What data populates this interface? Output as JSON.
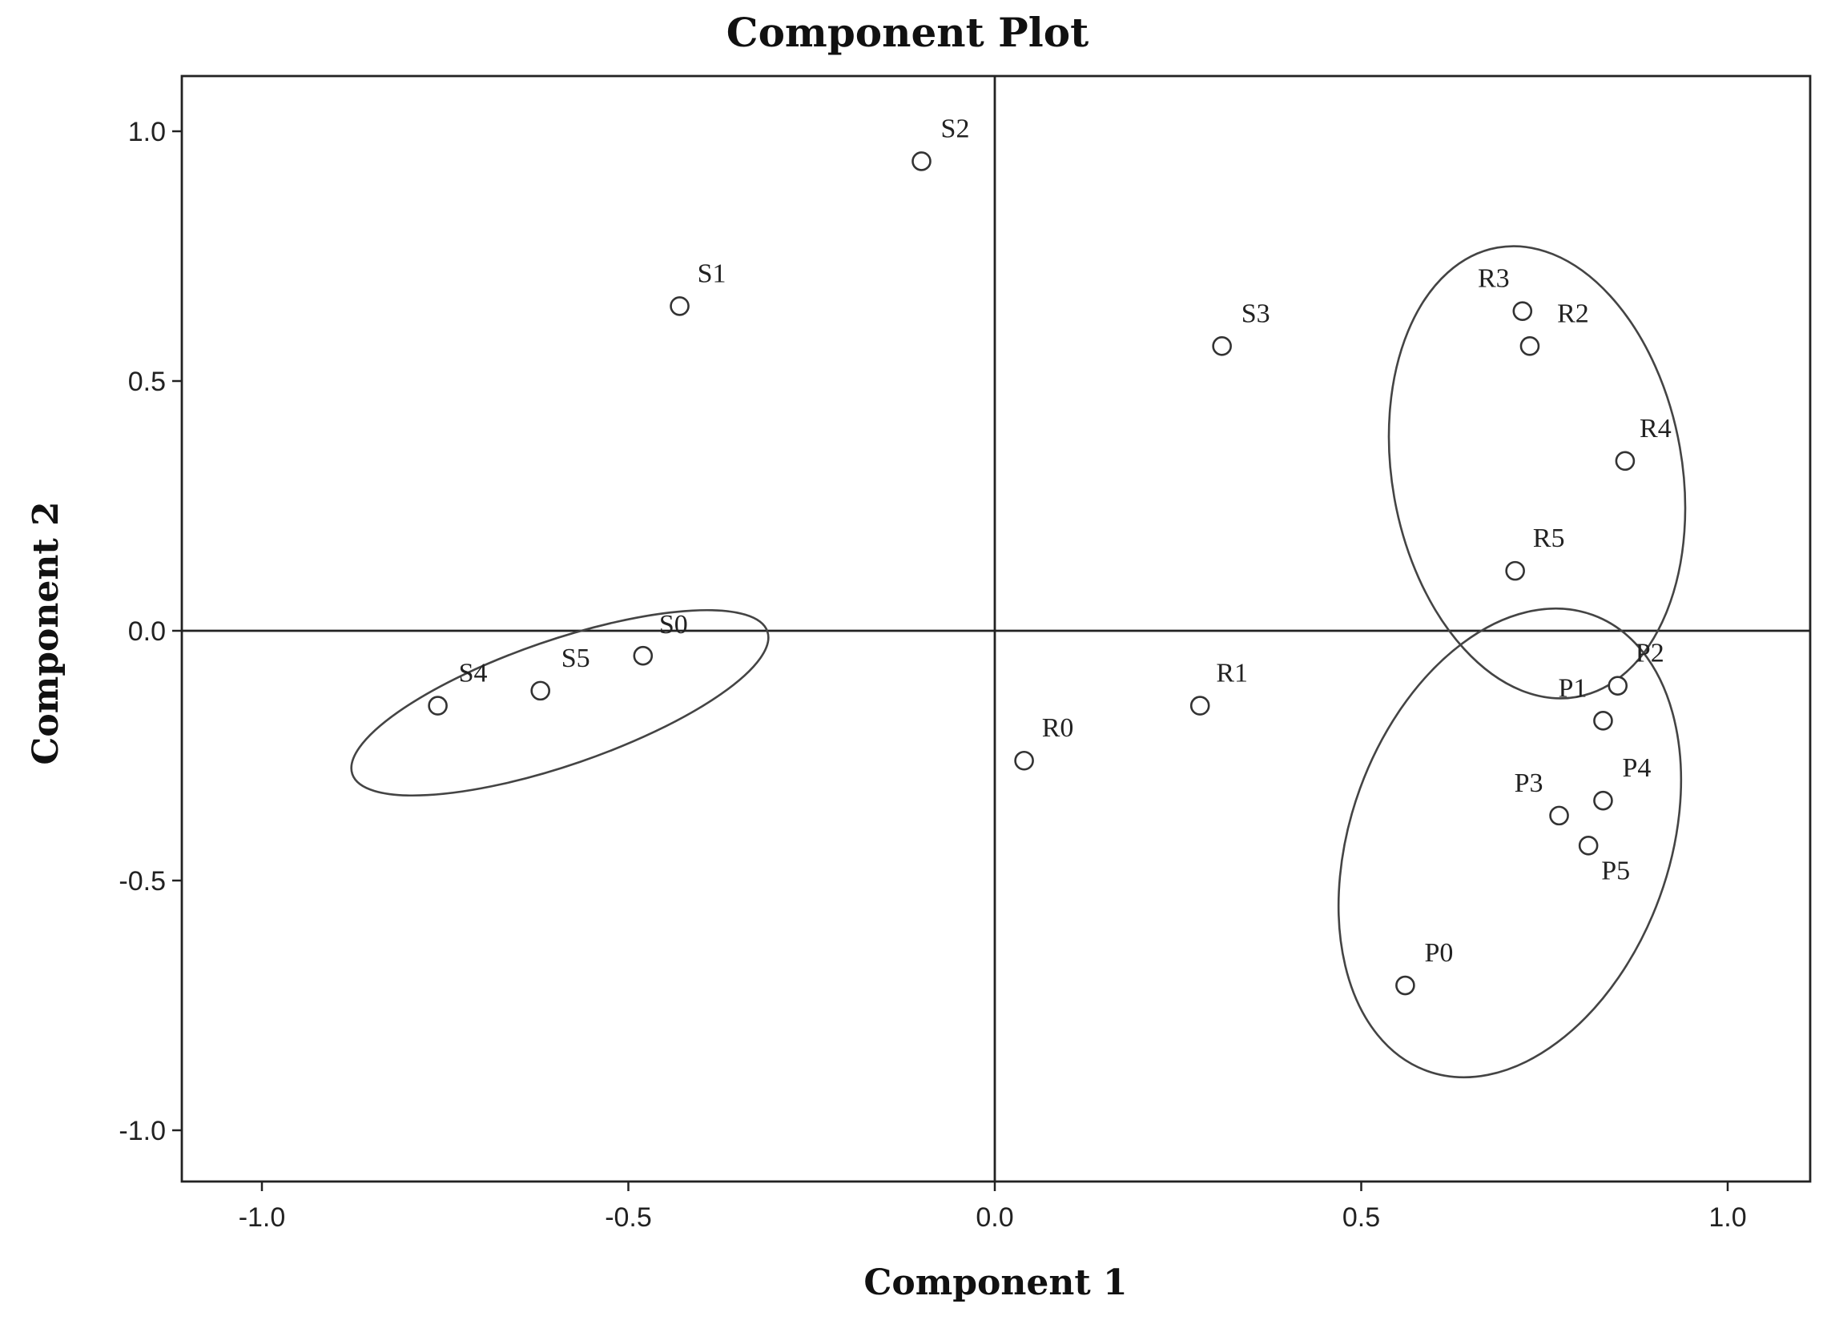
{
  "chart_data": {
    "type": "scatter",
    "title": "Component Plot",
    "xlabel": "Component 1",
    "ylabel": "Component 2",
    "xlim": [
      -1.1,
      1.1
    ],
    "ylim": [
      -1.1,
      1.1
    ],
    "x_ticks": [
      -1.0,
      -0.5,
      0.0,
      0.5,
      1.0
    ],
    "y_ticks": [
      1.0,
      0.5,
      0.0,
      -0.5,
      -1.0
    ],
    "x_tick_labels": [
      "-1.0",
      "-0.5",
      "0.0",
      "0.5",
      "1.0"
    ],
    "y_tick_labels": [
      "1.0",
      "0.5",
      "0.0",
      "-0.5",
      "-1.0"
    ],
    "reference_lines": {
      "x": 0.0,
      "y": 0.0
    },
    "grid": false,
    "points": [
      {
        "label": "S0",
        "x": -0.48,
        "y": -0.05
      },
      {
        "label": "S1",
        "x": -0.43,
        "y": 0.65
      },
      {
        "label": "S2",
        "x": -0.1,
        "y": 0.94
      },
      {
        "label": "S3",
        "x": 0.31,
        "y": 0.57
      },
      {
        "label": "S4",
        "x": -0.76,
        "y": -0.15
      },
      {
        "label": "S5",
        "x": -0.62,
        "y": -0.12
      },
      {
        "label": "R0",
        "x": 0.04,
        "y": -0.26
      },
      {
        "label": "R1",
        "x": 0.28,
        "y": -0.15
      },
      {
        "label": "R2",
        "x": 0.73,
        "y": 0.57
      },
      {
        "label": "R3",
        "x": 0.72,
        "y": 0.64
      },
      {
        "label": "R4",
        "x": 0.86,
        "y": 0.34
      },
      {
        "label": "R5",
        "x": 0.71,
        "y": 0.12
      },
      {
        "label": "P0",
        "x": 0.56,
        "y": -0.71
      },
      {
        "label": "P1",
        "x": 0.83,
        "y": -0.18
      },
      {
        "label": "P2",
        "x": 0.85,
        "y": -0.11
      },
      {
        "label": "P3",
        "x": 0.77,
        "y": -0.37
      },
      {
        "label": "P4",
        "x": 0.83,
        "y": -0.34
      },
      {
        "label": "P5",
        "x": 0.81,
        "y": -0.43
      }
    ],
    "groupings": [
      {
        "members": [
          "S0",
          "S4",
          "S5"
        ]
      },
      {
        "members": [
          "R2",
          "R3",
          "R4",
          "R5"
        ]
      },
      {
        "members": [
          "P0",
          "P1",
          "P2",
          "P3",
          "P4",
          "P5"
        ]
      }
    ]
  }
}
